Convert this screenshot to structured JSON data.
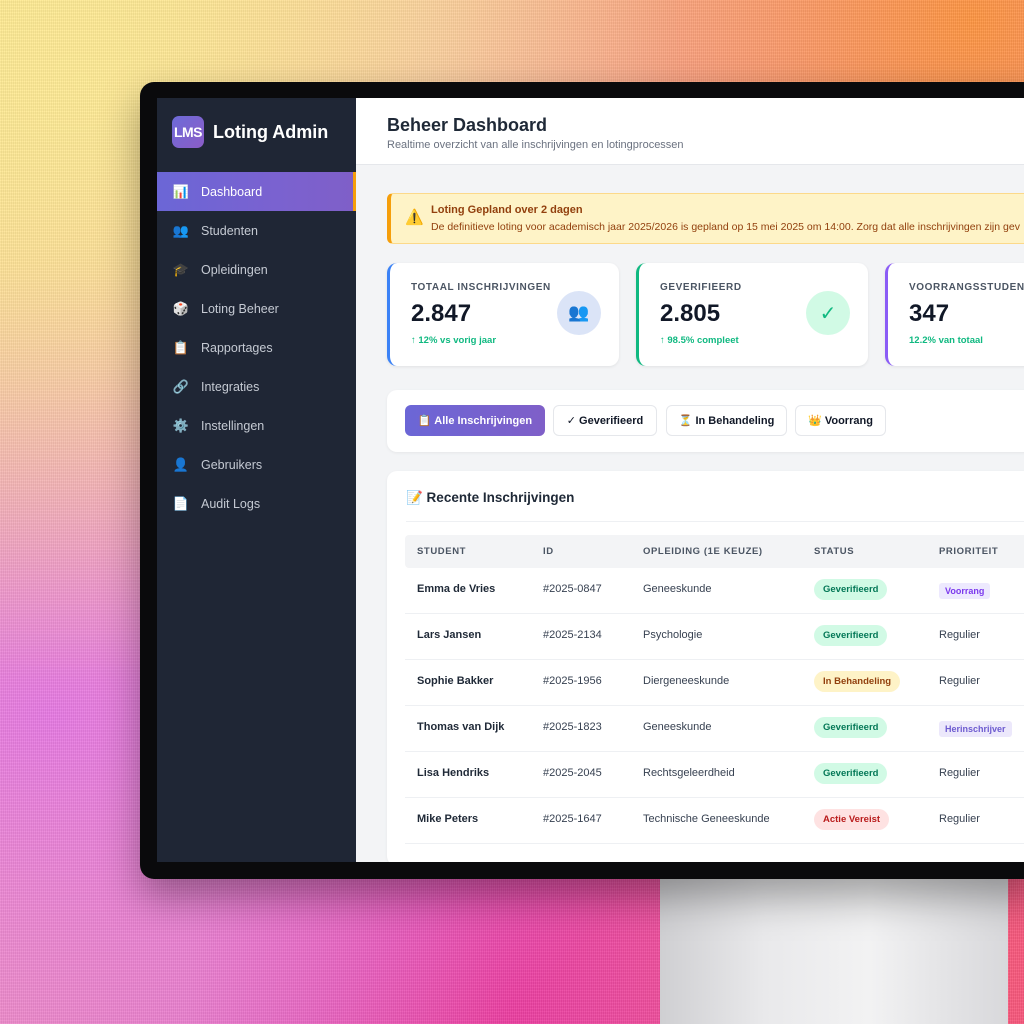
{
  "colors": {
    "sidebar_bg": "#1f2635",
    "accent_gradient_start": "#6b66d6",
    "accent_gradient_end": "#7f5fc8",
    "active_marker": "#f59e0b",
    "success": "#10b981",
    "warning_bg": "#fef3c7",
    "danger": "#dc2626"
  },
  "brand": {
    "logo_text": "LMS",
    "name": "Loting Admin"
  },
  "sidebar": {
    "items": [
      {
        "icon": "bar-chart-icon",
        "glyph": "📊",
        "label": "Dashboard",
        "active": true
      },
      {
        "icon": "users-icon",
        "glyph": "👥",
        "label": "Studenten",
        "active": false
      },
      {
        "icon": "graduation-cap-icon",
        "glyph": "🎓",
        "label": "Opleidingen",
        "active": false
      },
      {
        "icon": "dice-icon",
        "glyph": "🎲",
        "label": "Loting Beheer",
        "active": false
      },
      {
        "icon": "clipboard-icon",
        "glyph": "📋",
        "label": "Rapportages",
        "active": false
      },
      {
        "icon": "link-icon",
        "glyph": "🔗",
        "label": "Integraties",
        "active": false
      },
      {
        "icon": "gear-icon",
        "glyph": "⚙️",
        "label": "Instellingen",
        "active": false
      },
      {
        "icon": "user-icon",
        "glyph": "👤",
        "label": "Gebruikers",
        "active": false
      },
      {
        "icon": "document-icon",
        "glyph": "📄",
        "label": "Audit Logs",
        "active": false
      }
    ]
  },
  "header": {
    "title": "Beheer Dashboard",
    "subtitle": "Realtime overzicht van alle inschrijvingen en lotingprocessen"
  },
  "alert": {
    "icon": "warning-icon",
    "glyph": "⚠️",
    "title": "Loting Gepland over 2 dagen",
    "text": "De definitieve loting voor academisch jaar 2025/2026 is gepland op 15 mei 2025 om 14:00. Zorg dat alle inschrijvingen zijn gev"
  },
  "stats": [
    {
      "label": "TOTAAL INSCHRIJVINGEN",
      "value": "2.847",
      "trend": "↑ 12% vs vorig jaar",
      "icon": "users-icon",
      "glyph": "👥",
      "accent": "#3b82f6"
    },
    {
      "label": "GEVERIFIEERD",
      "value": "2.805",
      "trend": "↑ 98.5% compleet",
      "icon": "check-icon",
      "glyph": "✓",
      "accent": "#10b981"
    },
    {
      "label": "VOORRANGSSTUDENT",
      "value": "347",
      "trend": "12.2% van totaal",
      "icon": "star-icon",
      "glyph": "",
      "accent": "#8b5cf6"
    }
  ],
  "filters": [
    {
      "label": "📋 Alle Inschrijvingen",
      "active": true
    },
    {
      "label": "✓ Geverifieerd",
      "active": false
    },
    {
      "label": "⏳ In Behandeling",
      "active": false
    },
    {
      "label": "👑 Voorrang",
      "active": false
    }
  ],
  "table": {
    "title": "📝 Recente Inschrijvingen",
    "columns": [
      "STUDENT",
      "ID",
      "OPLEIDING (1E KEUZE)",
      "STATUS",
      "PRIORITEIT"
    ],
    "rows": [
      {
        "student": "Emma de Vries",
        "id": "#2025-0847",
        "opleiding": "Geneeskunde",
        "status": "Geverifieerd",
        "status_type": "success",
        "prioriteit": "Voorrang",
        "prio_type": "tag-purple"
      },
      {
        "student": "Lars Jansen",
        "id": "#2025-2134",
        "opleiding": "Psychologie",
        "status": "Geverifieerd",
        "status_type": "success",
        "prioriteit": "Regulier",
        "prio_type": "plain"
      },
      {
        "student": "Sophie Bakker",
        "id": "#2025-1956",
        "opleiding": "Diergeneeskunde",
        "status": "In Behandeling",
        "status_type": "pending",
        "prioriteit": "Regulier",
        "prio_type": "plain"
      },
      {
        "student": "Thomas van Dijk",
        "id": "#2025-1823",
        "opleiding": "Geneeskunde",
        "status": "Geverifieerd",
        "status_type": "success",
        "prioriteit": "Herinschrijver",
        "prio_type": "tag-lavender"
      },
      {
        "student": "Lisa Hendriks",
        "id": "#2025-2045",
        "opleiding": "Rechtsgeleerdheid",
        "status": "Geverifieerd",
        "status_type": "success",
        "prioriteit": "Regulier",
        "prio_type": "plain"
      },
      {
        "student": "Mike Peters",
        "id": "#2025-1647",
        "opleiding": "Technische Geneeskunde",
        "status": "Actie Vereist",
        "status_type": "danger",
        "prioriteit": "Regulier",
        "prio_type": "plain"
      }
    ]
  }
}
